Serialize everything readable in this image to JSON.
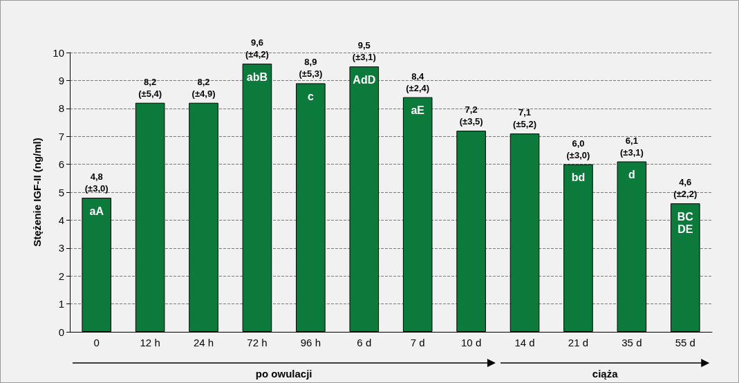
{
  "chart_data": {
    "type": "bar",
    "ylabel": "Stężenie IGF-II (ng/ml)",
    "categories": [
      "0",
      "12 h",
      "24 h",
      "72 h",
      "96 h",
      "6 d",
      "7 d",
      "10 d",
      "14 d",
      "21 d",
      "35 d",
      "55 d"
    ],
    "values": [
      4.8,
      8.2,
      8.2,
      9.6,
      8.9,
      9.5,
      8.4,
      7.2,
      7.1,
      6.0,
      6.1,
      4.6
    ],
    "value_labels": [
      "4,8\n(±3,0)",
      "8,2\n(±5,4)",
      "8,2\n(±4,9)",
      "9,6\n(±4,2)",
      "8,9\n(±5,3)",
      "9,5\n(±3,1)",
      "8,4\n(±2,4)",
      "7,2\n(±3,5)",
      "7,1\n(±5,2)",
      "6,0\n(±3,0)",
      "6,1\n(±3,1)",
      "4,6\n(±2,2)"
    ],
    "color": "#0b7a3b",
    "ylim": [
      0,
      10
    ],
    "yticks": [
      0,
      1,
      2,
      3,
      4,
      5,
      6,
      7,
      8,
      9,
      10
    ],
    "grid": "y",
    "annotations": [
      {
        "text": "aA",
        "x": "0",
        "y": 4.8
      },
      {
        "text": "abB",
        "x": "72 h",
        "y": 9.6
      },
      {
        "text": "c",
        "x": "96 h",
        "y": 8.9
      },
      {
        "text": "AdD",
        "x": "6 d",
        "y": 9.5
      },
      {
        "text": "aE",
        "x": "7 d",
        "y": 8.4
      },
      {
        "text": "bd",
        "x": "21 d",
        "y": 6.0
      },
      {
        "text": "d",
        "x": "35 d",
        "y": 6.1
      },
      {
        "text": "BC\nDE",
        "x": "55 d",
        "y": 4.6
      },
      "po owulacji",
      "ciąża"
    ]
  }
}
